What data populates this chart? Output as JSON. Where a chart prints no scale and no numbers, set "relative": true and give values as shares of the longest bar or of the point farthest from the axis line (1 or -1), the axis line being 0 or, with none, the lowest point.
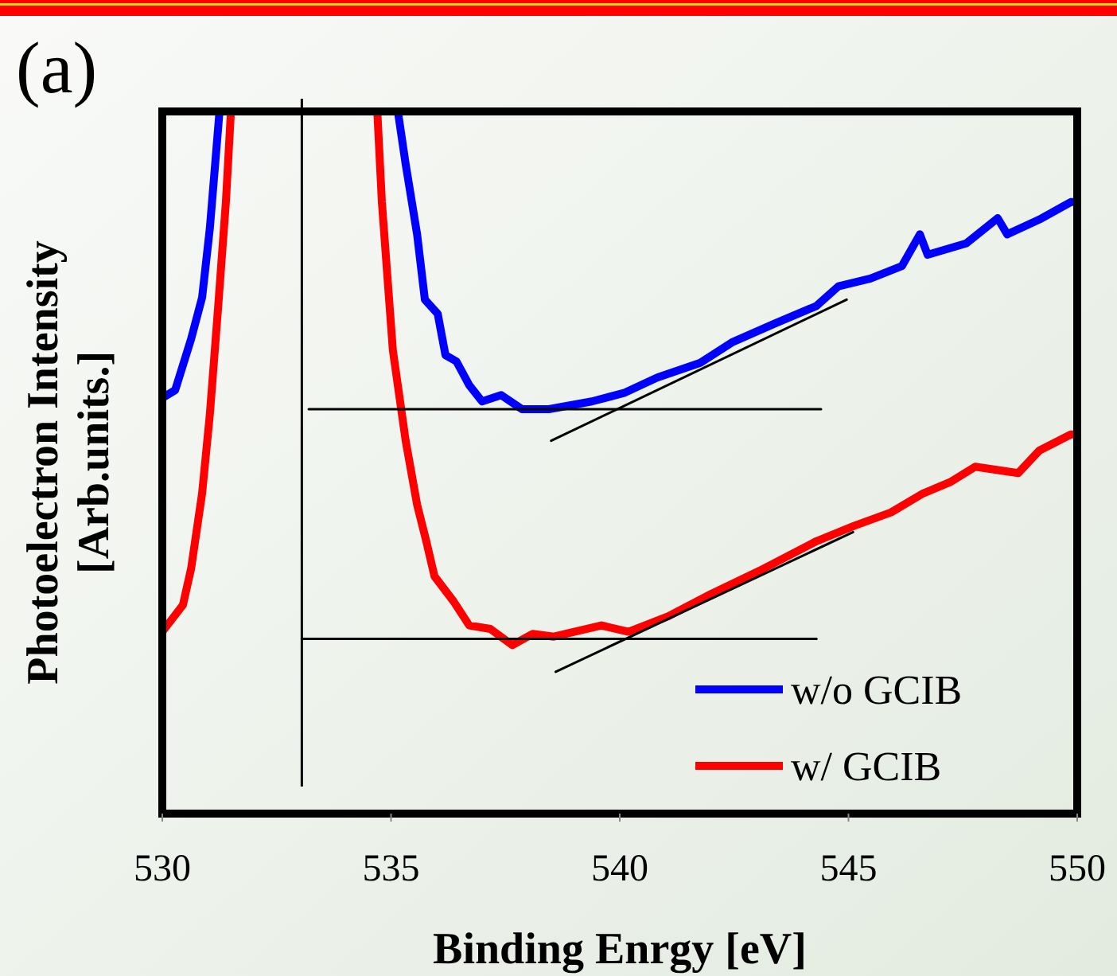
{
  "chart_data": {
    "type": "line",
    "title": "(a)",
    "xlabel": "Binding Enrgy [eV]",
    "ylabel": "Photoelectron Intensity\n[Arb.units.]",
    "relative": true,
    "xlim": [
      530,
      550
    ],
    "xticks": [
      530,
      535,
      540,
      545,
      550
    ],
    "legend": "bottom right",
    "ref_lines": [
      {
        "axis": "x",
        "value": 533.05,
        "color": "#000000"
      }
    ],
    "series": [
      {
        "name": "w/o GCIB",
        "color": "#0000ff",
        "x": [
          530,
          530.28,
          530.63,
          530.87,
          531.04,
          531.25,
          533.2,
          535.15,
          535.32,
          535.57,
          535.74,
          536.02,
          536.19,
          536.43,
          536.71,
          536.99,
          537.41,
          537.86,
          538.45,
          539.39,
          540.09,
          540.82,
          541.76,
          542.45,
          543.39,
          544.3,
          544.78,
          545.48,
          546.17,
          546.56,
          546.73,
          547.57,
          548.26,
          548.47,
          549.17,
          549.86,
          550
        ],
        "values": [
          0.592,
          0.603,
          0.676,
          0.735,
          0.834,
          1.0,
          null,
          1.0,
          0.925,
          0.825,
          0.732,
          0.712,
          0.653,
          0.644,
          0.61,
          0.587,
          0.596,
          0.576,
          0.576,
          0.587,
          0.599,
          0.621,
          0.642,
          0.671,
          0.698,
          0.723,
          0.751,
          0.762,
          0.78,
          0.825,
          0.796,
          0.812,
          0.848,
          0.825,
          0.846,
          0.871,
          0.871
        ]
      },
      {
        "name": "w/ GCIB",
        "color": "#ff0000",
        "x": [
          530,
          530.45,
          530.63,
          530.87,
          531.04,
          531.22,
          531.39,
          531.5,
          533.1,
          534.7,
          534.8,
          535.04,
          535.32,
          535.57,
          535.77,
          535.95,
          536.37,
          536.71,
          537.17,
          537.65,
          538.1,
          538.56,
          539.6,
          540.19,
          541.06,
          542.0,
          543.15,
          544.3,
          545.13,
          545.93,
          546.63,
          547.22,
          547.77,
          548.71,
          549.17,
          549.86,
          550
        ],
        "values": [
          0.259,
          0.297,
          0.349,
          0.456,
          0.569,
          0.721,
          0.871,
          1.0,
          null,
          1.0,
          0.871,
          0.66,
          0.531,
          0.44,
          0.388,
          0.338,
          0.302,
          0.268,
          0.263,
          0.24,
          0.256,
          0.252,
          0.268,
          0.259,
          0.281,
          0.313,
          0.349,
          0.388,
          0.41,
          0.429,
          0.456,
          0.472,
          0.494,
          0.485,
          0.517,
          0.54,
          0.54
        ]
      },
      {
        "type": "line",
        "color": "#000000",
        "x": [
          533.2,
          544.4
        ],
        "values": [
          0.576,
          0.576
        ]
      },
      {
        "type": "line",
        "color": "#000000",
        "x": [
          538.5,
          544.96
        ],
        "values": [
          0.531,
          0.732
        ]
      },
      {
        "type": "line",
        "color": "#000000",
        "x": [
          533.05,
          544.3
        ],
        "values": [
          0.249,
          0.249
        ]
      },
      {
        "type": "line",
        "color": "#000000",
        "x": [
          538.6,
          545.1
        ],
        "values": [
          0.202,
          0.401
        ]
      }
    ]
  }
}
